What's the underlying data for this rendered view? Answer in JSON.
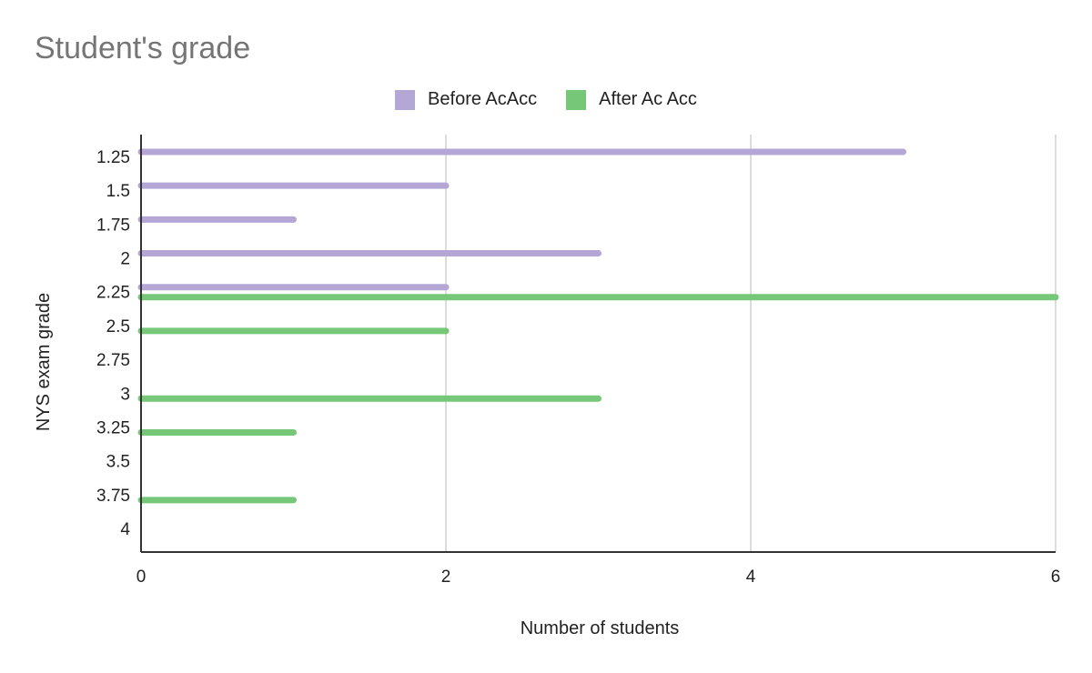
{
  "chart_data": {
    "type": "bar",
    "orientation": "horizontal",
    "title": "Student's grade",
    "xlabel": "Number of students",
    "ylabel": "NYS exam grade",
    "categories": [
      "1.25",
      "1.5",
      "1.75",
      "2",
      "2.25",
      "2.5",
      "2.75",
      "3",
      "3.25",
      "3.5",
      "3.75",
      "4"
    ],
    "series": [
      {
        "name": "Before AcAcc",
        "color": "#b4a7d6",
        "values": [
          5,
          2,
          1,
          3,
          2,
          0,
          0,
          0,
          0,
          0,
          0,
          0
        ]
      },
      {
        "name": "After Ac Acc",
        "color": "#77c779",
        "values": [
          0,
          0,
          0,
          0,
          6,
          2,
          0,
          3,
          1,
          0,
          1,
          0
        ]
      }
    ],
    "xlim": [
      0,
      6
    ],
    "xticks": [
      "0",
      "2",
      "4",
      "6"
    ],
    "grid": true,
    "legend": "top"
  }
}
